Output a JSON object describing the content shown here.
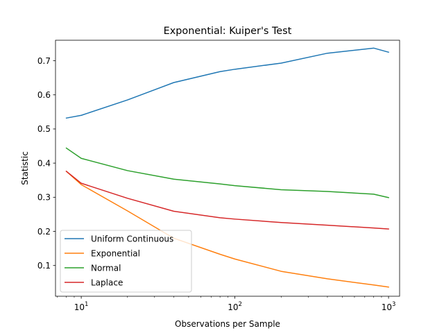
{
  "chart_data": {
    "type": "line",
    "title": "Exponential: Kuiper's Test",
    "xlabel": "Observations per Sample",
    "ylabel": "Statistic",
    "xscale": "log",
    "xlim": [
      6.8,
      1180
    ],
    "ylim": [
      0.01,
      0.76
    ],
    "x": [
      8,
      10,
      20,
      40,
      80,
      100,
      200,
      400,
      800,
      1000
    ],
    "x_ticks": [
      {
        "value": 10,
        "base": "10",
        "exp": "1"
      },
      {
        "value": 100,
        "base": "10",
        "exp": "2"
      },
      {
        "value": 1000,
        "base": "10",
        "exp": "3"
      }
    ],
    "y_ticks": [
      {
        "value": 0.1,
        "label": "0.1"
      },
      {
        "value": 0.2,
        "label": "0.2"
      },
      {
        "value": 0.3,
        "label": "0.3"
      },
      {
        "value": 0.4,
        "label": "0.4"
      },
      {
        "value": 0.5,
        "label": "0.5"
      },
      {
        "value": 0.6,
        "label": "0.6"
      },
      {
        "value": 0.7,
        "label": "0.7"
      }
    ],
    "grid": false,
    "legend_position": "lower-left",
    "series": [
      {
        "name": "Uniform Continuous",
        "color": "#1f77b4",
        "values": [
          0.532,
          0.54,
          0.585,
          0.636,
          0.668,
          0.675,
          0.693,
          0.722,
          0.737,
          0.725
        ]
      },
      {
        "name": "Exponential",
        "color": "#ff7f0e",
        "values": [
          0.376,
          0.337,
          0.26,
          0.18,
          0.133,
          0.119,
          0.083,
          0.061,
          0.043,
          0.037
        ]
      },
      {
        "name": "Normal",
        "color": "#2ca02c",
        "values": [
          0.444,
          0.414,
          0.378,
          0.353,
          0.339,
          0.334,
          0.322,
          0.317,
          0.309,
          0.299
        ]
      },
      {
        "name": "Laplace",
        "color": "#d62728",
        "values": [
          0.376,
          0.341,
          0.297,
          0.259,
          0.24,
          0.236,
          0.226,
          0.218,
          0.21,
          0.207
        ]
      }
    ]
  }
}
